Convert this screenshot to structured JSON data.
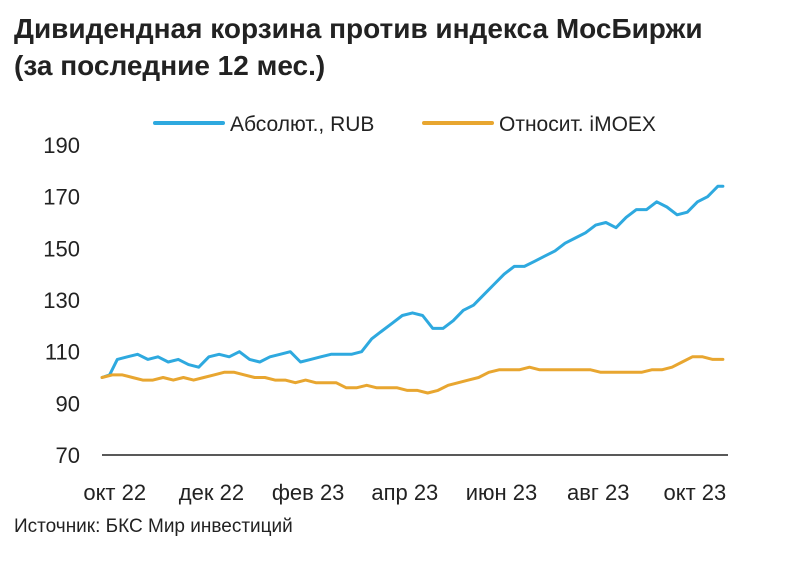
{
  "chart_data": {
    "type": "line",
    "title": "Дивидендная корзина против индекса МосБиржи",
    "subtitle": "(за последние 12 мес.)",
    "source": "Источник: БКС Мир инвестиций",
    "ylim": [
      70,
      190
    ],
    "yticks": [
      190,
      170,
      150,
      130,
      110,
      90,
      70
    ],
    "xlim": [
      0,
      12.3
    ],
    "xticks": [
      {
        "label": "окт 22",
        "x": 0.25
      },
      {
        "label": "дек 22",
        "x": 2.15
      },
      {
        "label": "фев 23",
        "x": 4.05
      },
      {
        "label": "апр 23",
        "x": 5.95
      },
      {
        "label": "июн 23",
        "x": 7.85
      },
      {
        "label": "авг 23",
        "x": 9.75
      },
      {
        "label": "окт 23",
        "x": 11.65
      }
    ],
    "legend_position": "top",
    "series": [
      {
        "name": "Абсолют., RUB",
        "color": "#2EA9DF",
        "x": [
          0.0,
          0.15,
          0.3,
          0.5,
          0.7,
          0.9,
          1.1,
          1.3,
          1.5,
          1.7,
          1.9,
          2.1,
          2.3,
          2.5,
          2.7,
          2.9,
          3.1,
          3.3,
          3.5,
          3.7,
          3.9,
          4.1,
          4.3,
          4.5,
          4.7,
          4.9,
          5.1,
          5.3,
          5.5,
          5.7,
          5.9,
          6.1,
          6.3,
          6.5,
          6.7,
          6.9,
          7.1,
          7.3,
          7.5,
          7.7,
          7.9,
          8.1,
          8.3,
          8.5,
          8.7,
          8.9,
          9.1,
          9.3,
          9.5,
          9.7,
          9.9,
          10.1,
          10.3,
          10.5,
          10.7,
          10.9,
          11.1,
          11.3,
          11.5,
          11.7,
          11.9,
          12.0,
          12.1,
          12.2
        ],
        "y": [
          100,
          101,
          107,
          108,
          109,
          107,
          108,
          106,
          107,
          105,
          104,
          108,
          109,
          108,
          110,
          107,
          106,
          108,
          109,
          110,
          106,
          107,
          108,
          109,
          109,
          109,
          110,
          115,
          118,
          121,
          124,
          125,
          124,
          119,
          119,
          122,
          126,
          128,
          132,
          136,
          140,
          143,
          143,
          145,
          147,
          149,
          152,
          154,
          156,
          159,
          160,
          158,
          162,
          165,
          165,
          168,
          166,
          163,
          164,
          168,
          170,
          172,
          174,
          174
        ]
      },
      {
        "name": "Относит. iMOEX",
        "color": "#E8A630",
        "x": [
          0.0,
          0.2,
          0.4,
          0.6,
          0.8,
          1.0,
          1.2,
          1.4,
          1.6,
          1.8,
          2.0,
          2.2,
          2.4,
          2.6,
          2.8,
          3.0,
          3.2,
          3.4,
          3.6,
          3.8,
          4.0,
          4.2,
          4.4,
          4.6,
          4.8,
          5.0,
          5.2,
          5.4,
          5.6,
          5.8,
          6.0,
          6.2,
          6.4,
          6.6,
          6.8,
          7.0,
          7.2,
          7.4,
          7.6,
          7.8,
          8.0,
          8.2,
          8.4,
          8.6,
          8.8,
          9.0,
          9.2,
          9.4,
          9.6,
          9.8,
          10.0,
          10.2,
          10.4,
          10.6,
          10.8,
          11.0,
          11.2,
          11.4,
          11.6,
          11.8,
          12.0,
          12.2
        ],
        "y": [
          100,
          101,
          101,
          100,
          99,
          99,
          100,
          99,
          100,
          99,
          100,
          101,
          102,
          102,
          101,
          100,
          100,
          99,
          99,
          98,
          99,
          98,
          98,
          98,
          96,
          96,
          97,
          96,
          96,
          96,
          95,
          95,
          94,
          95,
          97,
          98,
          99,
          100,
          102,
          103,
          103,
          103,
          104,
          103,
          103,
          103,
          103,
          103,
          103,
          102,
          102,
          102,
          102,
          102,
          103,
          103,
          104,
          106,
          108,
          108,
          107,
          107
        ]
      }
    ]
  }
}
